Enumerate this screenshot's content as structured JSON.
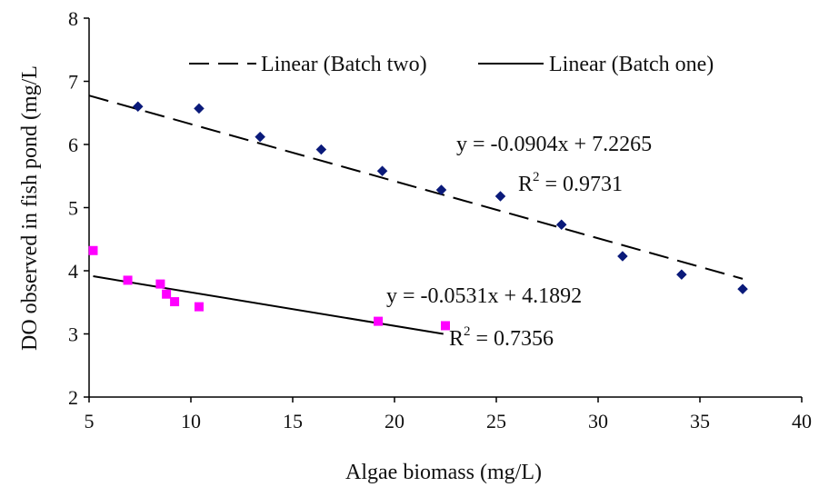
{
  "chart_data": {
    "type": "scatter",
    "title": "",
    "xlabel": "Algae biomass (mg/L)",
    "ylabel": "DO observed in fish pond (mg/L",
    "xlim": [
      5,
      40
    ],
    "ylim": [
      2,
      8
    ],
    "xticks": [
      5,
      10,
      15,
      20,
      25,
      30,
      35,
      40
    ],
    "yticks": [
      2,
      3,
      4,
      5,
      6,
      7,
      8
    ],
    "grid": false,
    "legend_position": "top",
    "series": [
      {
        "color": "#0a1a7a",
        "marker": "diamond",
        "x": [
          7.4,
          10.4,
          13.4,
          16.4,
          19.4,
          22.3,
          25.2,
          28.2,
          31.2,
          34.1,
          37.1
        ],
        "y": [
          6.6,
          6.57,
          6.12,
          5.92,
          5.58,
          5.28,
          5.18,
          4.73,
          4.23,
          3.94,
          3.71
        ]
      },
      {
        "color": "#ff00ff",
        "marker": "square",
        "x": [
          5.2,
          6.9,
          8.5,
          8.8,
          9.2,
          10.4,
          19.2,
          22.5
        ],
        "y": [
          4.32,
          3.85,
          3.79,
          3.63,
          3.51,
          3.43,
          3.2,
          3.13
        ]
      }
    ],
    "trendlines": [
      {
        "name": "Linear (Batch two)",
        "style": "dashed",
        "slope": -0.0904,
        "intercept": 7.2265,
        "x_range": [
          5,
          37.1
        ],
        "equation": "y = -0.0904x + 7.2265",
        "r2_label": "R",
        "r2_exp": "2",
        "r2_value": " = 0.9731"
      },
      {
        "name": "Linear (Batch one)",
        "style": "solid",
        "slope": -0.0531,
        "intercept": 4.1892,
        "x_range": [
          5.2,
          22.4
        ],
        "equation": "y = -0.0531x + 4.1892",
        "r2_label": "R",
        "r2_exp": "2",
        "r2_value": " = 0.7356"
      }
    ]
  }
}
